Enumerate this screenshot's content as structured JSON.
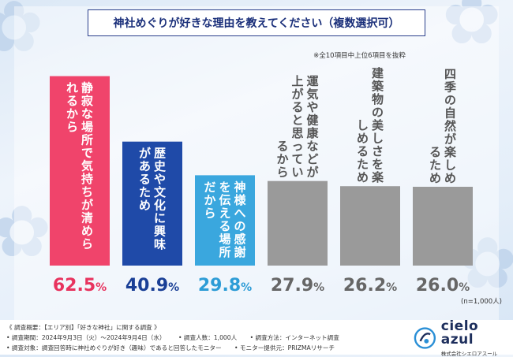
{
  "header": {
    "title": "神社めぐりが好きな理由を教えてください（複数選択可）",
    "note": "※全10項目中上位6項目を抜粋"
  },
  "sample_size": "(n=1,000人)",
  "chart_data": {
    "type": "bar",
    "categories": [
      "静寂な場所で気持ちが清められるから",
      "歴史や文化に興味があるため",
      "神様への感謝を伝える場所だから",
      "運気や健康などが上がると思っているから",
      "建築物の美しさを楽しめるため",
      "四季の自然が楽しめるため"
    ],
    "values": [
      62.5,
      40.9,
      29.8,
      27.9,
      26.2,
      26.0
    ],
    "value_labels": [
      "62.5%",
      "40.9%",
      "29.8%",
      "27.9%",
      "26.2%",
      "26.0%"
    ],
    "bar_colors": [
      "#f0446b",
      "#1f4aa8",
      "#3aa7de",
      "#9a9a9a",
      "#9a9a9a",
      "#9a9a9a"
    ],
    "label_colors": [
      "#e8335e",
      "#1a3f96",
      "#2d9cd6",
      "#666666",
      "#666666",
      "#666666"
    ],
    "ylim": [
      0,
      65
    ]
  },
  "footer": {
    "overview": "《 調査概要：【エリア別】「好きな神社」に関する調査 》",
    "period": "• 調査期間：2024年9月3日（火）〜2024年9月4日（水）",
    "respondents": "• 調査人数：1,000人",
    "method": "• 調査方法：インターネット調査",
    "target": "• 調査対象：調査回答時に神社めぐりが好き（趣味）であると回答したモニター",
    "provider": "• モニター提供元：PRIZMAリサーチ"
  },
  "logo": {
    "name": "cielo azul",
    "sub": "株式会社シエロアスール"
  },
  "colors": {
    "brand_navy": "#1d2e5c",
    "title_border": "#2a3f8c",
    "background": "#dbe8f6"
  }
}
